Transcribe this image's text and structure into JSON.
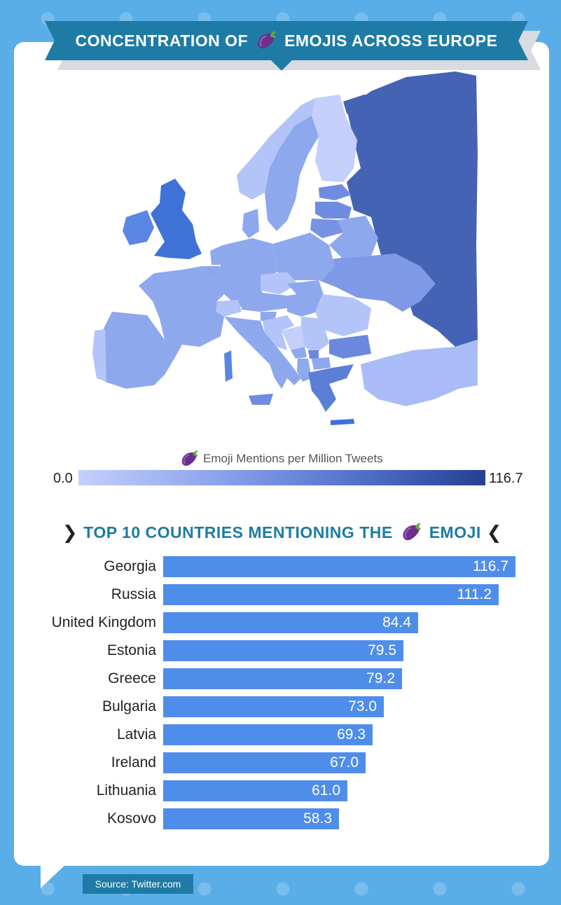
{
  "header": {
    "title_part1": "CONCENTRATION OF",
    "title_icon": "eggplant-emoji",
    "title_part2": "EMOJIS ACROSS EUROPE"
  },
  "legend": {
    "label": "Emoji Mentions per Million Tweets",
    "icon": "eggplant-emoji",
    "min": "0.0",
    "max": "116.7",
    "color_low": "#c4d0fb",
    "color_high": "#263f91"
  },
  "chart_title": {
    "part1": "TOP 10 COUNTRIES MENTIONING THE",
    "icon": "eggplant-emoji",
    "part2": "EMOJI",
    "left_chevron": "❯",
    "right_chevron": "❮"
  },
  "chart_data": {
    "type": "bar",
    "orientation": "horizontal",
    "categories": [
      "Georgia",
      "Russia",
      "United Kingdom",
      "Estonia",
      "Greece",
      "Bulgaria",
      "Latvia",
      "Ireland",
      "Lithuania",
      "Kosovo"
    ],
    "values": [
      116.7,
      111.2,
      84.4,
      79.5,
      79.2,
      73.0,
      69.3,
      67.0,
      61.0,
      58.3
    ],
    "value_labels": [
      "116.7",
      "111.2",
      "84.4",
      "79.5",
      "79.2",
      "73.0",
      "69.3",
      "67.0",
      "61.0",
      "58.3"
    ],
    "title": "TOP 10 COUNTRIES MENTIONING THE EMOJI",
    "xlim": [
      0,
      116.7
    ],
    "bar_color": "#4f8deb",
    "grid": false
  },
  "map": {
    "colors": {
      "russia": "#4563b5",
      "uk": "#3f72d6",
      "ireland": "#5a86e4",
      "scandinavia": "#8ea8ee",
      "finland": "#c4d0fb",
      "central": "#8ea8ee",
      "light": "#b3c4f8",
      "baltic": "#6f8ce0",
      "balkans": "#6a88de",
      "turkey": "#a9bcf7",
      "iberia": "#8ea8ee"
    }
  },
  "footer": {
    "source": "Source: Twitter.com"
  }
}
